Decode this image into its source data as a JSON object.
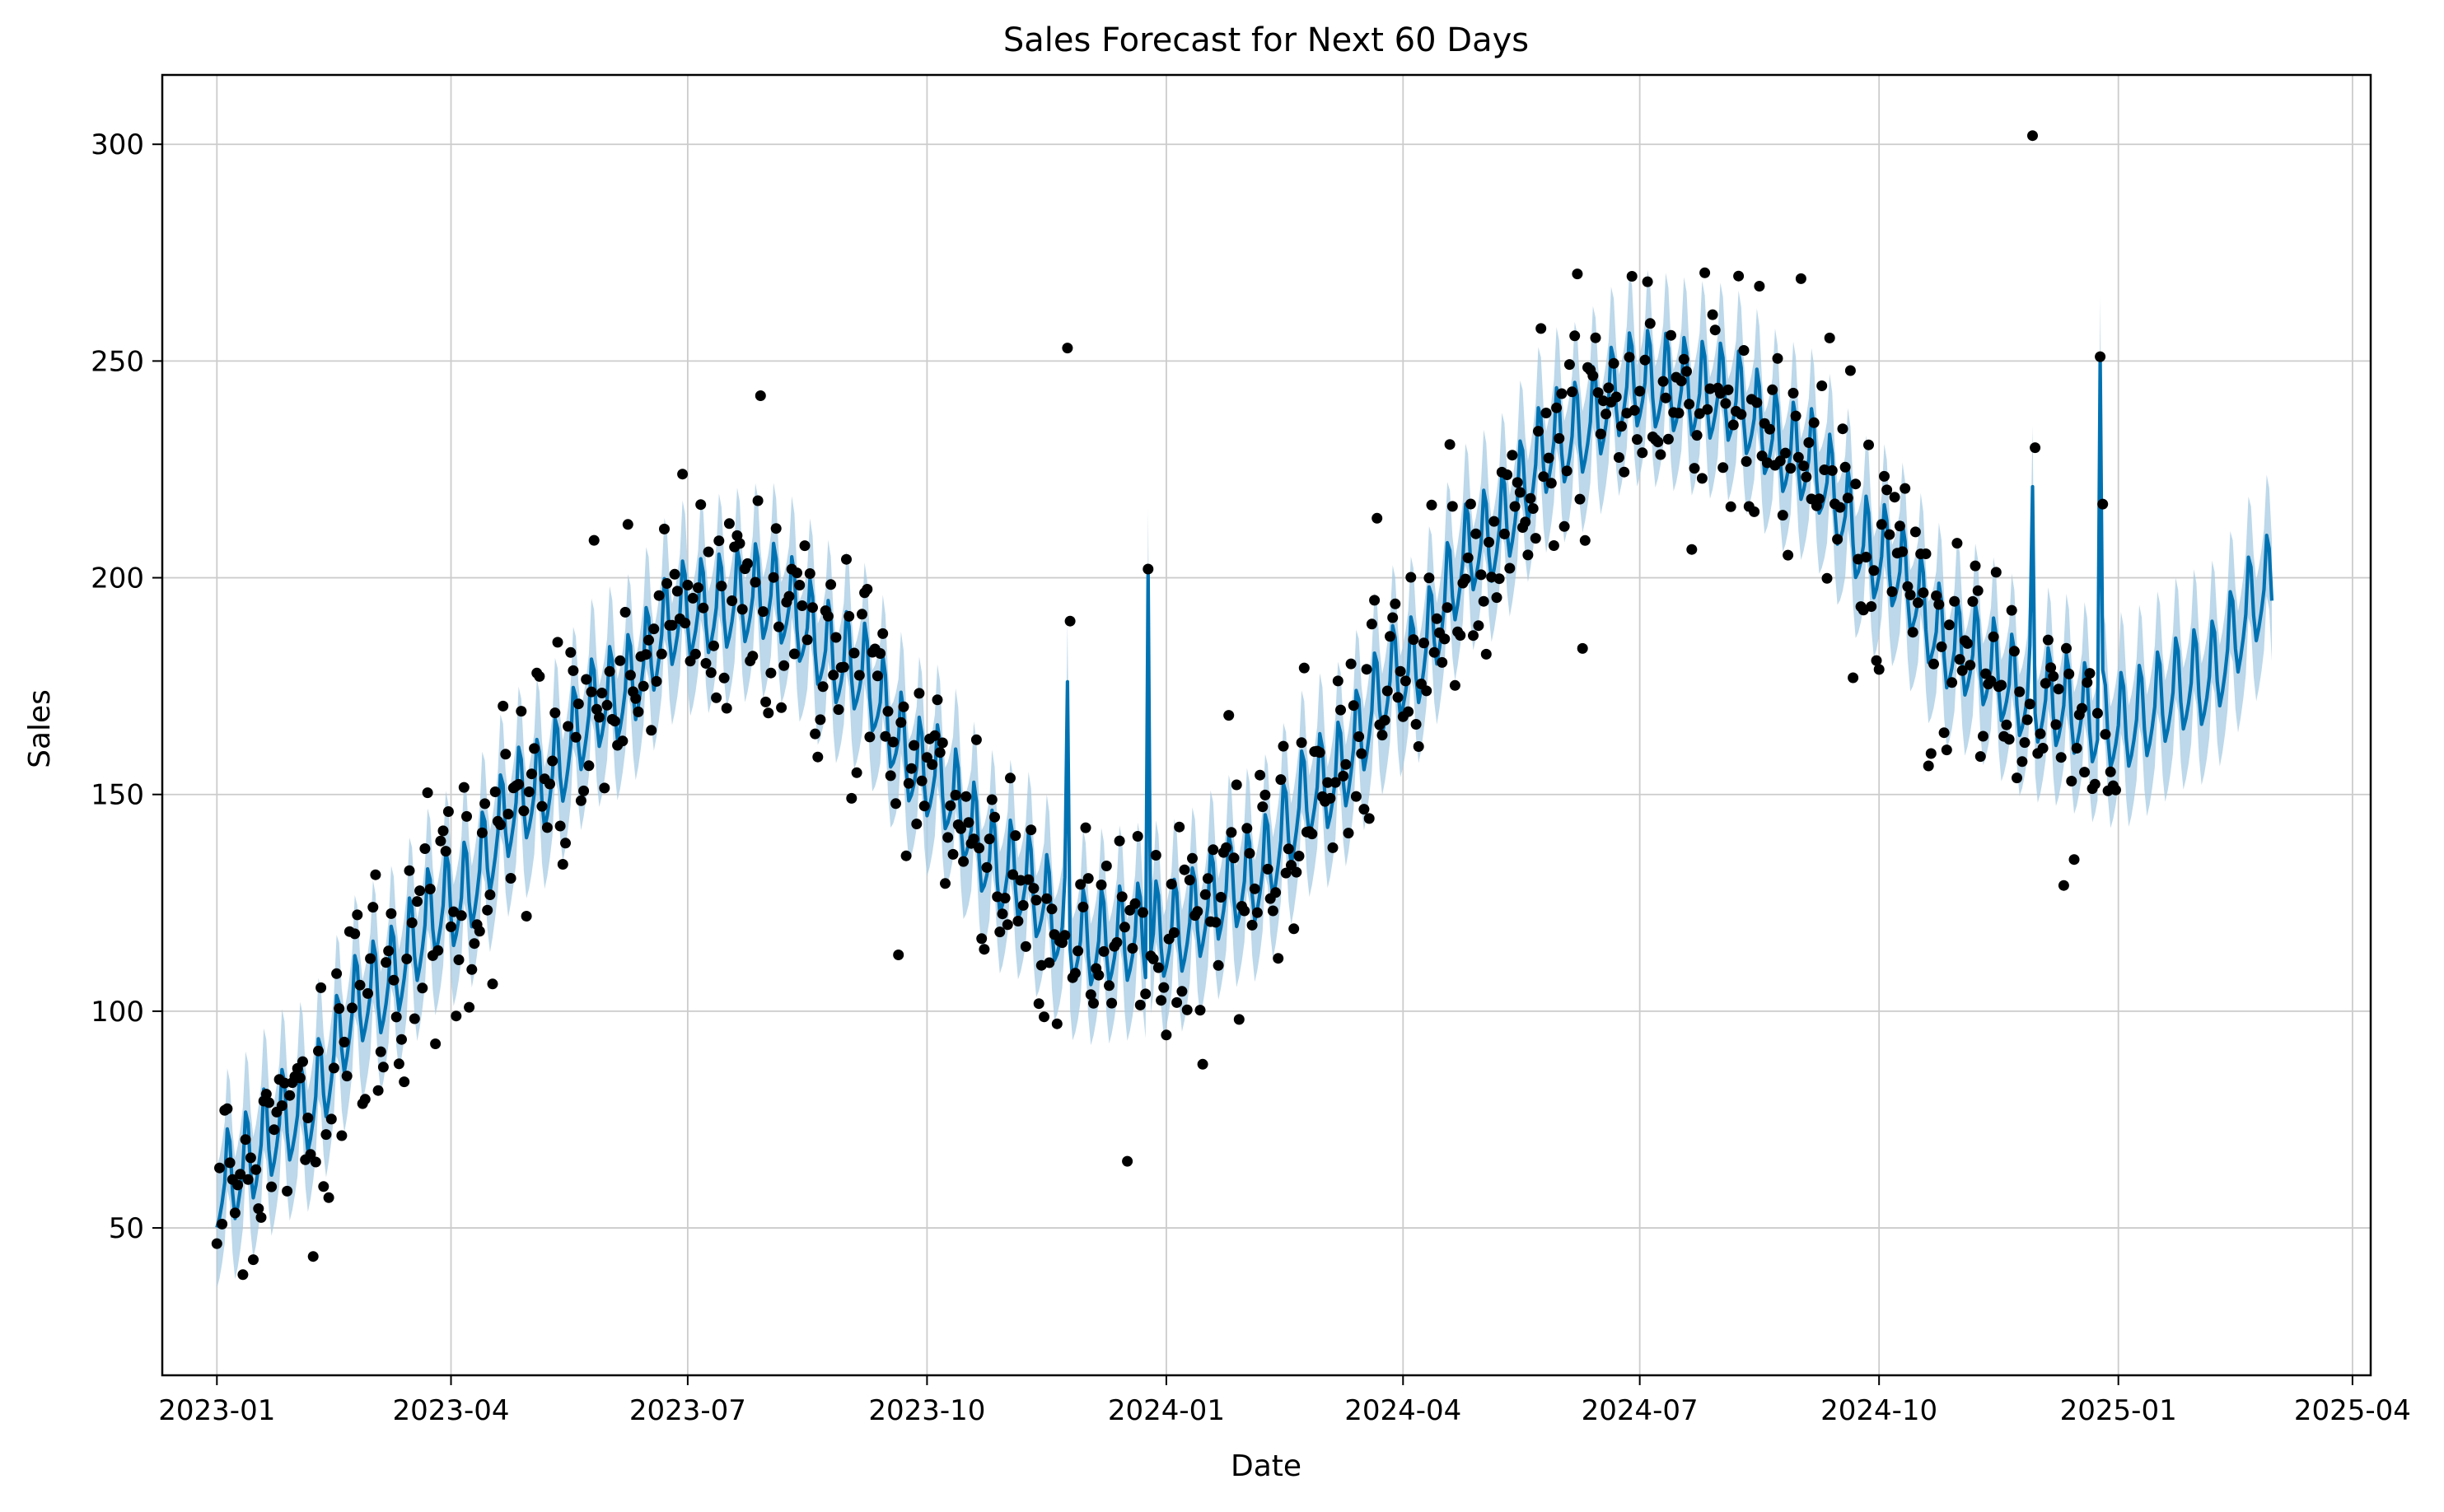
{
  "chart_data": {
    "type": "line",
    "title": "Sales Forecast for Next 60 Days",
    "xlabel": "Date",
    "ylabel": "Sales",
    "x_range": [
      "2022-12-11",
      "2025-04-08"
    ],
    "ylim": [
      16,
      316
    ],
    "grid": true,
    "x_ticks": [
      {
        "date": "2023-01-01",
        "label": "2023-01"
      },
      {
        "date": "2023-04-01",
        "label": "2023-04"
      },
      {
        "date": "2023-07-01",
        "label": "2023-07"
      },
      {
        "date": "2023-10-01",
        "label": "2023-10"
      },
      {
        "date": "2024-01-01",
        "label": "2024-01"
      },
      {
        "date": "2024-04-01",
        "label": "2024-04"
      },
      {
        "date": "2024-07-01",
        "label": "2024-07"
      },
      {
        "date": "2024-10-01",
        "label": "2024-10"
      },
      {
        "date": "2025-01-01",
        "label": "2025-01"
      },
      {
        "date": "2025-04-01",
        "label": "2025-04"
      }
    ],
    "y_ticks": [
      {
        "value": 50,
        "label": "50"
      },
      {
        "value": 100,
        "label": "100"
      },
      {
        "value": 150,
        "label": "150"
      },
      {
        "value": 200,
        "label": "200"
      },
      {
        "value": 250,
        "label": "250"
      },
      {
        "value": 300,
        "label": "300"
      }
    ],
    "forecast": {
      "color": "#0072b2",
      "band_color": "#a6cbe3",
      "history_start": "2023-01-01",
      "history_end": "2024-12-31",
      "forecast_end": "2025-03-01",
      "weekly_amplitude": 22,
      "interval_halfwidth": 14,
      "trend_knots": [
        {
          "date": "2023-01-01",
          "value": 60
        },
        {
          "date": "2023-02-01",
          "value": 76
        },
        {
          "date": "2023-03-01",
          "value": 104
        },
        {
          "date": "2023-04-01",
          "value": 125
        },
        {
          "date": "2023-05-01",
          "value": 150
        },
        {
          "date": "2023-06-01",
          "value": 172
        },
        {
          "date": "2023-07-01",
          "value": 192
        },
        {
          "date": "2023-08-01",
          "value": 196
        },
        {
          "date": "2023-09-01",
          "value": 180
        },
        {
          "date": "2023-10-01",
          "value": 155
        },
        {
          "date": "2023-11-01",
          "value": 132
        },
        {
          "date": "2023-12-01",
          "value": 116
        },
        {
          "date": "2024-01-01",
          "value": 118
        },
        {
          "date": "2024-02-01",
          "value": 130
        },
        {
          "date": "2024-03-01",
          "value": 152
        },
        {
          "date": "2024-04-01",
          "value": 178
        },
        {
          "date": "2024-05-01",
          "value": 208
        },
        {
          "date": "2024-06-01",
          "value": 232
        },
        {
          "date": "2024-07-01",
          "value": 245
        },
        {
          "date": "2024-08-01",
          "value": 242
        },
        {
          "date": "2024-09-01",
          "value": 228
        },
        {
          "date": "2024-10-01",
          "value": 205
        },
        {
          "date": "2024-11-01",
          "value": 183
        },
        {
          "date": "2024-12-01",
          "value": 172
        },
        {
          "date": "2025-01-01",
          "value": 166
        },
        {
          "date": "2025-02-01",
          "value": 176
        },
        {
          "date": "2025-03-01",
          "value": 198
        }
      ],
      "spikes": [
        {
          "date": "2023-11-24",
          "value": 176
        },
        {
          "date": "2023-12-25",
          "value": 202
        },
        {
          "date": "2024-11-29",
          "value": 221
        },
        {
          "date": "2024-12-25",
          "value": 251
        }
      ]
    },
    "observed": {
      "color": "#000000",
      "noise": 12,
      "outliers": [
        {
          "date": "2023-07-29",
          "value": 242
        },
        {
          "date": "2023-09-20",
          "value": 113
        },
        {
          "date": "2023-11-24",
          "value": 253
        },
        {
          "date": "2023-11-25",
          "value": 190
        },
        {
          "date": "2023-12-25",
          "value": 202
        },
        {
          "date": "2024-09-01",
          "value": 269
        },
        {
          "date": "2024-11-29",
          "value": 302
        },
        {
          "date": "2024-11-30",
          "value": 230
        },
        {
          "date": "2024-12-11",
          "value": 129
        },
        {
          "date": "2024-12-25",
          "value": 251
        },
        {
          "date": "2024-12-26",
          "value": 217
        }
      ]
    }
  }
}
